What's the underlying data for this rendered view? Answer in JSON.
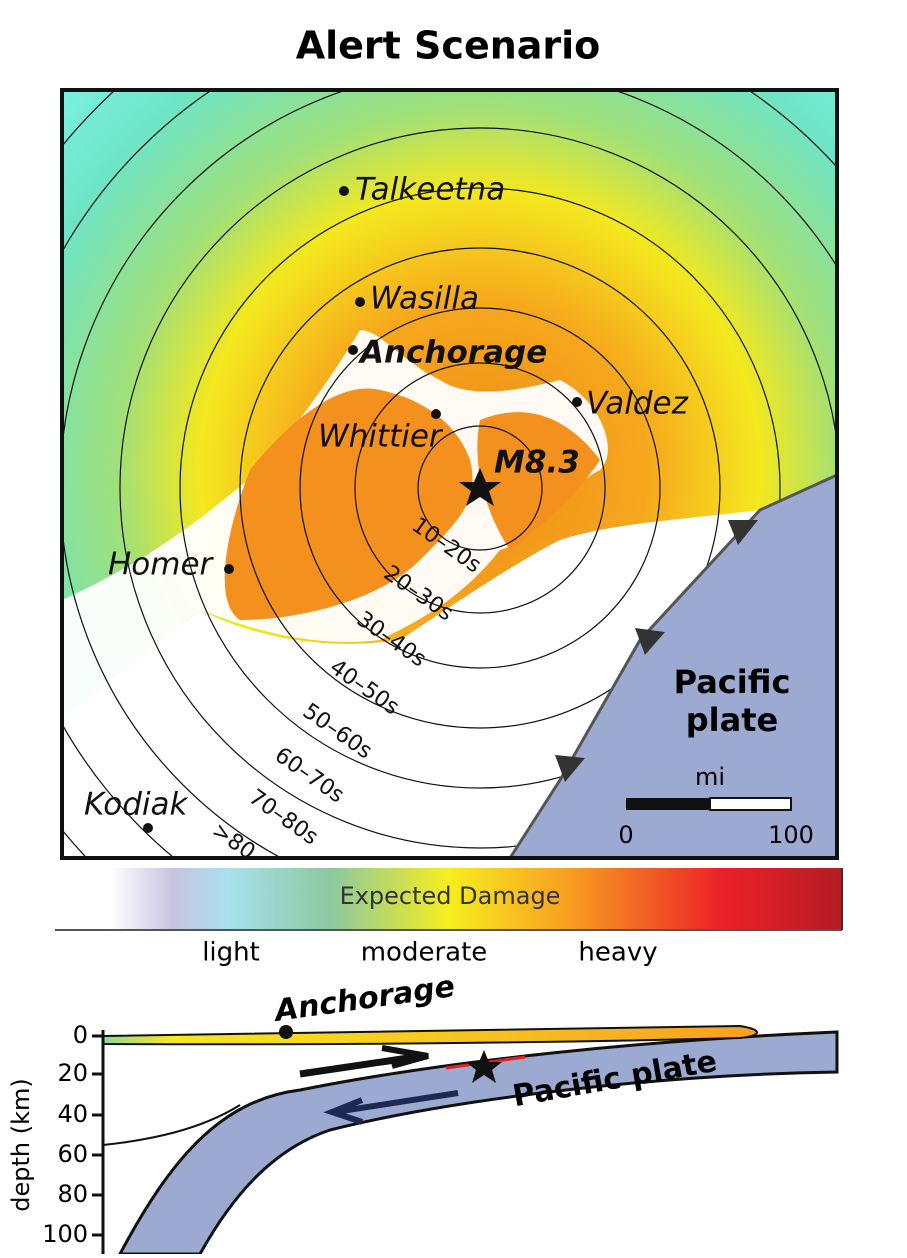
{
  "title": "Alert Scenario",
  "map": {
    "places": [
      "Talkeetna",
      "Wasilla",
      "Anchorage",
      "Valdez",
      "Whittier",
      "Homer",
      "Kodiak"
    ],
    "epicenter": "M8.3",
    "rings": [
      "10–20s",
      "20–30s",
      "30–40s",
      "40–50s",
      "50–60s",
      "60–70s",
      "70–80s",
      ">80"
    ],
    "plate": [
      "Pacific",
      "plate"
    ],
    "scale": {
      "unit": "mi",
      "start": "0",
      "end": "100"
    }
  },
  "legend": {
    "title": "Expected Damage",
    "labels": [
      "light",
      "moderate",
      "heavy"
    ]
  },
  "cross_section": {
    "place": "Anchorage",
    "plate": "Pacific plate",
    "axis_label": "depth (km)",
    "depth_ticks": [
      "0",
      "20",
      "40",
      "60",
      "80",
      "100"
    ]
  }
}
